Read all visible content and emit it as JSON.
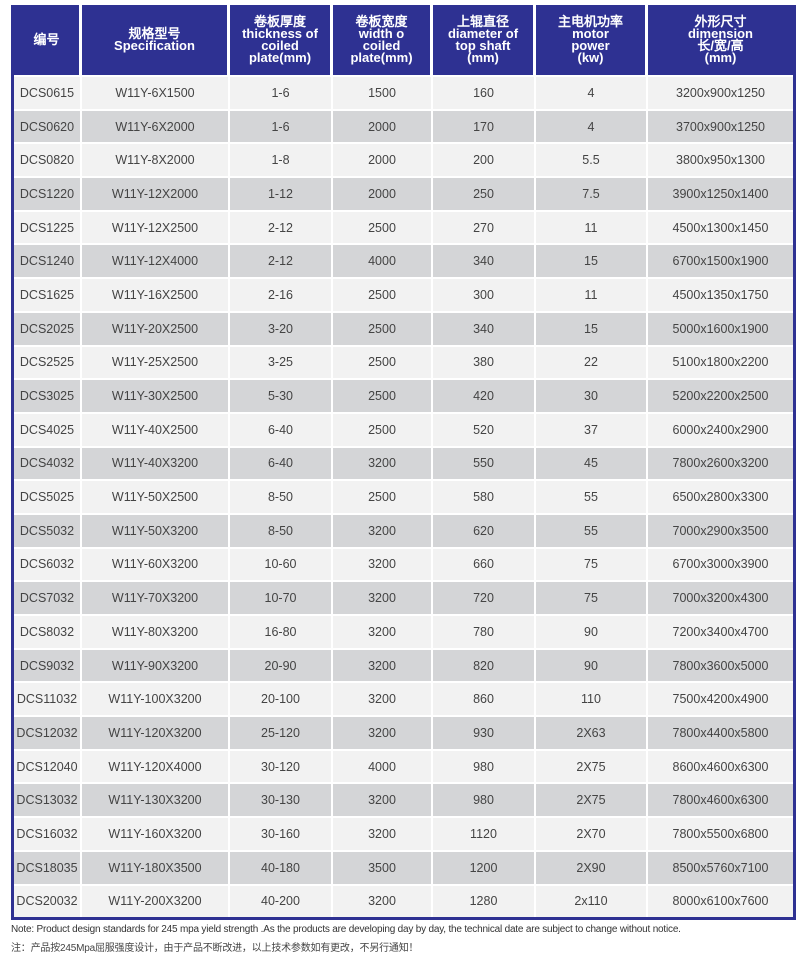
{
  "header": [
    [
      "编号"
    ],
    [
      "规格型号",
      "Specification"
    ],
    [
      "卷板厚度",
      "thickness of",
      "coiled",
      "plate(mm)"
    ],
    [
      "卷板宽度",
      "width o",
      "coiled",
      "plate(mm)"
    ],
    [
      "上辊直径",
      "diameter of",
      "top shaft",
      "(mm)"
    ],
    [
      "主电机功率",
      "motor",
      "power",
      "(kw)"
    ],
    [
      "外形尺寸",
      "dimension",
      "长/宽/高",
      "(mm)"
    ]
  ],
  "rows": [
    [
      "DCS0615",
      "W11Y-6X1500",
      "1-6",
      "1500",
      "160",
      "4",
      "3200x900x1250"
    ],
    [
      "DCS0620",
      "W11Y-6X2000",
      "1-6",
      "2000",
      "170",
      "4",
      "3700x900x1250"
    ],
    [
      "DCS0820",
      "W11Y-8X2000",
      "1-8",
      "2000",
      "200",
      "5.5",
      "3800x950x1300"
    ],
    [
      "DCS1220",
      "W11Y-12X2000",
      "1-12",
      "2000",
      "250",
      "7.5",
      "3900x1250x1400"
    ],
    [
      "DCS1225",
      "W11Y-12X2500",
      "2-12",
      "2500",
      "270",
      "11",
      "4500x1300x1450"
    ],
    [
      "DCS1240",
      "W11Y-12X4000",
      "2-12",
      "4000",
      "340",
      "15",
      "6700x1500x1900"
    ],
    [
      "DCS1625",
      "W11Y-16X2500",
      "2-16",
      "2500",
      "300",
      "11",
      "4500x1350x1750"
    ],
    [
      "DCS2025",
      "W11Y-20X2500",
      "3-20",
      "2500",
      "340",
      "15",
      "5000x1600x1900"
    ],
    [
      "DCS2525",
      "W11Y-25X2500",
      "3-25",
      "2500",
      "380",
      "22",
      "5100x1800x2200"
    ],
    [
      "DCS3025",
      "W11Y-30X2500",
      "5-30",
      "2500",
      "420",
      "30",
      "5200x2200x2500"
    ],
    [
      "DCS4025",
      "W11Y-40X2500",
      "6-40",
      "2500",
      "520",
      "37",
      "6000x2400x2900"
    ],
    [
      "DCS4032",
      "W11Y-40X3200",
      "6-40",
      "3200",
      "550",
      "45",
      "7800x2600x3200"
    ],
    [
      "DCS5025",
      "W11Y-50X2500",
      "8-50",
      "2500",
      "580",
      "55",
      "6500x2800x3300"
    ],
    [
      "DCS5032",
      "W11Y-50X3200",
      "8-50",
      "3200",
      "620",
      "55",
      "7000x2900x3500"
    ],
    [
      "DCS6032",
      "W11Y-60X3200",
      "10-60",
      "3200",
      "660",
      "75",
      "6700x3000x3900"
    ],
    [
      "DCS7032",
      "W11Y-70X3200",
      "10-70",
      "3200",
      "720",
      "75",
      "7000x3200x4300"
    ],
    [
      "DCS8032",
      "W11Y-80X3200",
      "16-80",
      "3200",
      "780",
      "90",
      "7200x3400x4700"
    ],
    [
      "DCS9032",
      "W11Y-90X3200",
      "20-90",
      "3200",
      "820",
      "90",
      "7800x3600x5000"
    ],
    [
      "DCS11032",
      "W11Y-100X3200",
      "20-100",
      "3200",
      "860",
      "110",
      "7500x4200x4900"
    ],
    [
      "DCS12032",
      "W11Y-120X3200",
      "25-120",
      "3200",
      "930",
      "2X63",
      "7800x4400x5800"
    ],
    [
      "DCS12040",
      "W11Y-120X4000",
      "30-120",
      "4000",
      "980",
      "2X75",
      "8600x4600x6300"
    ],
    [
      "DCS13032",
      "W11Y-130X3200",
      "30-130",
      "3200",
      "980",
      "2X75",
      "7800x4600x6300"
    ],
    [
      "DCS16032",
      "W11Y-160X3200",
      "30-160",
      "3200",
      "1120",
      "2X70",
      "7800x5500x6800"
    ],
    [
      "DCS18035",
      "W11Y-180X3500",
      "40-180",
      "3500",
      "1200",
      "2X90",
      "8500x5760x7100"
    ],
    [
      "DCS20032",
      "W11Y-200X3200",
      "40-200",
      "3200",
      "1280",
      "2x110",
      "8000x6100x7600"
    ]
  ],
  "notes": {
    "en": "Note: Product design standards for 245 mpa yield strength .As the products are developing day by day, the technical date are subject to change without notice.",
    "zh": "注：产品按245Mpa屈服强度设计，由于产品不断改进，以上技术参数如有更改，不另行通知！"
  },
  "colors": {
    "header_bg": "#2e3192",
    "row_light": "#f2f2f2",
    "row_dark": "#d4d5d7"
  }
}
